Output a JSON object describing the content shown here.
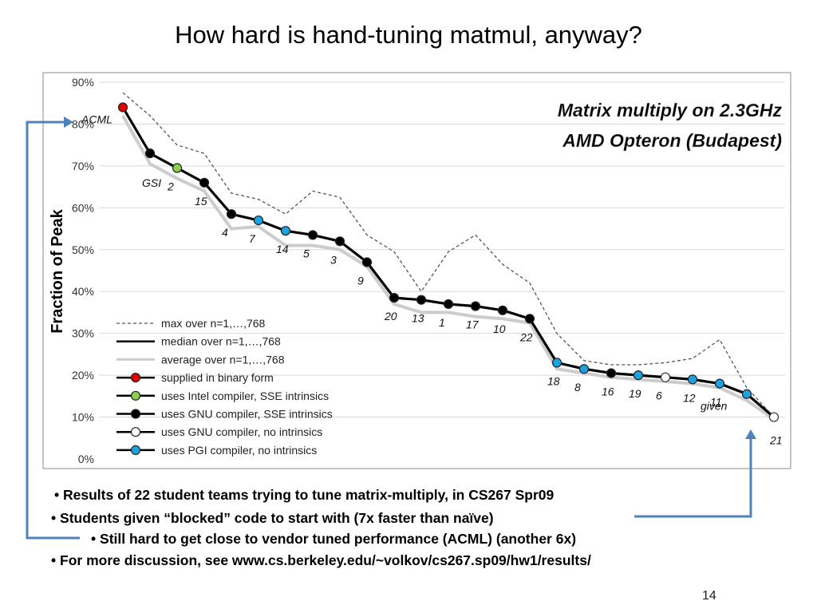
{
  "slide": {
    "title": "How hard is hand-tuning matmul, anyway?",
    "page_number": "14",
    "bullets": [
      "Results of 22 student teams trying to tune matrix-multiply, in CS267 Spr09",
      "Students given “blocked” code to start with (7x faster than naïve)",
      "Still hard to get close to vendor tuned performance (ACML) (another 6x)",
      "For more discussion, see www.cs.berkeley.edu/~volkov/cs267.sp09/hw1/results/"
    ],
    "bullet_char": "•"
  },
  "chart_data": {
    "type": "line",
    "title_lines": [
      "Matrix multiply on 2.3GHz",
      "AMD Opteron (Budapest)"
    ],
    "ylabel": "Fraction of Peak",
    "ylim": [
      0,
      90
    ],
    "yticks": [
      "0%",
      "10%",
      "20%",
      "30%",
      "40%",
      "50%",
      "60%",
      "70%",
      "80%",
      "90%"
    ],
    "grid": true,
    "legend_position": "bottom-left",
    "categories": [
      "ACML",
      "GSI",
      "2",
      "15",
      "4",
      "7",
      "14",
      "5",
      "3",
      "9",
      "20",
      "13",
      "1",
      "17",
      "10",
      "22",
      "18",
      "8",
      "16",
      "19",
      "6",
      "12",
      "11",
      "given",
      "21"
    ],
    "series": [
      {
        "name": "max over n=1,…,768",
        "style": "dashed",
        "color": "#555555",
        "values": [
          87.5,
          82,
          75,
          73,
          63.5,
          62,
          58.5,
          64,
          62.5,
          53.5,
          49.5,
          40,
          49.5,
          53.5,
          46.5,
          42,
          30,
          23.5,
          22.5,
          22.5,
          23,
          24,
          28.5,
          17,
          10
        ]
      },
      {
        "name": "median over n=1,…,768",
        "style": "solid",
        "color": "#000000",
        "values": [
          84,
          73,
          69.5,
          66,
          58.5,
          57,
          54.5,
          53.5,
          52,
          47,
          38.5,
          38,
          37,
          36.5,
          35.5,
          33.5,
          23,
          21.5,
          20.5,
          20,
          19.5,
          19,
          18,
          15.5,
          10
        ]
      },
      {
        "name": "average over n=1,…,768",
        "style": "solid",
        "color": "#cccccc",
        "values": [
          82,
          70.5,
          67,
          64,
          55,
          55.5,
          51,
          51,
          50,
          46,
          37,
          35,
          35,
          34,
          33.5,
          32.5,
          21.5,
          20.5,
          19.5,
          19,
          18.5,
          18,
          17,
          14,
          9.5
        ]
      }
    ],
    "marker_types": [
      {
        "key": "binary",
        "label": "supplied in binary form",
        "color": "#e00000"
      },
      {
        "key": "intel_sse",
        "label": "uses Intel compiler, SSE intrinsics",
        "color": "#8ccf4d"
      },
      {
        "key": "gnu_sse",
        "label": "uses GNU  compiler, SSE intrinsics",
        "color": "#000000"
      },
      {
        "key": "gnu_none",
        "label": "uses GNU  compiler, no intrinsics",
        "color": "#ffffff"
      },
      {
        "key": "pgi",
        "label": "uses PGI compiler, no intrinsics",
        "color": "#1aa3e0"
      }
    ],
    "point_markers": [
      "binary",
      "gnu_sse",
      "intel_sse",
      "gnu_sse",
      "gnu_sse",
      "pgi",
      "pgi",
      "gnu_sse",
      "gnu_sse",
      "gnu_sse",
      "gnu_sse",
      "gnu_sse",
      "gnu_sse",
      "gnu_sse",
      "gnu_sse",
      "gnu_sse",
      "pgi",
      "pgi",
      "gnu_sse",
      "pgi",
      "gnu_none",
      "pgi",
      "pgi",
      "pgi",
      "gnu_none"
    ],
    "arrow_labels": [
      "ACML",
      "given"
    ]
  }
}
